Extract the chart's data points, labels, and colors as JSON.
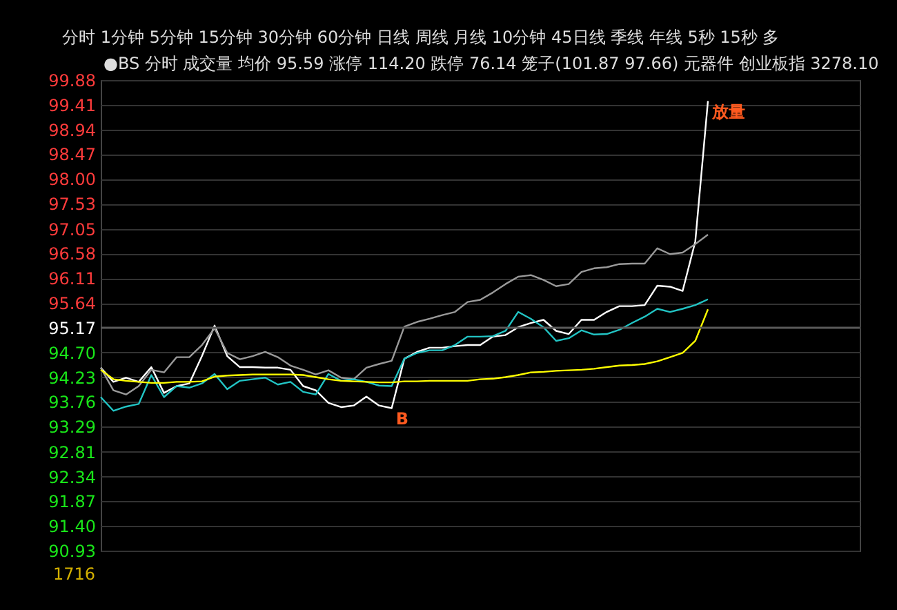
{
  "chart_data": {
    "type": "line",
    "categories": [
      null,
      null,
      null,
      null,
      null,
      null,
      null,
      null,
      null,
      null,
      null,
      null,
      null,
      null,
      null,
      null,
      null,
      null,
      null,
      null,
      null,
      null,
      null,
      null,
      null,
      null,
      null,
      null,
      null,
      null,
      null,
      null,
      null,
      null,
      null,
      null,
      null,
      null,
      null,
      null,
      null,
      null,
      null,
      null,
      null,
      null,
      null,
      null,
      null,
      null,
      null,
      null,
      null,
      null,
      null,
      null,
      null,
      null,
      null,
      null,
      null
    ],
    "ylim": [
      90.93,
      99.88
    ],
    "yticks": [
      90.93,
      {
        "value": 91.4,
        "label": "91.40"
      },
      91.87,
      92.34,
      92.81,
      93.29,
      93.76,
      94.23,
      {
        "value": 94.7,
        "label": "94.70"
      },
      95.17,
      95.64,
      96.11,
      96.58,
      97.05,
      97.53,
      {
        "value": 98,
        "label": "98.00"
      },
      98.47,
      98.94,
      99.41,
      99.88
    ],
    "tick_labels": "y",
    "grid": "y",
    "legend": false,
    "marker": "none",
    "line_style": "solid",
    "ref_lines": [
      {
        "axis": "y",
        "value": 95.17,
        "color": "#5a5a5a"
      }
    ],
    "annotations": [
      "分时 1分钟 5分钟 15分钟 30分钟 60分钟 日线 周线 月线 10分钟 45日线 季线 年线 5秒 15秒 多",
      "●BS 分时 成交量 均价 95.59 涨停 114.20 跌停 76.14 笼子(101.87 97.66) 元器件 创业板指 3278.10",
      "1716"
    ],
    "series": [
      {
        "color": "#ffffff",
        "values": [
          94.41,
          94.14,
          94.22,
          94.14,
          94.42,
          93.93,
          94.06,
          94.11,
          94.63,
          95.21,
          94.63,
          94.42,
          94.42,
          94.41,
          94.41,
          94.37,
          94.06,
          93.98,
          93.74,
          93.66,
          93.69,
          93.86,
          93.69,
          93.64,
          94.58,
          94.71,
          94.79,
          94.79,
          94.82,
          94.84,
          94.84,
          95.0,
          95.03,
          95.18,
          95.26,
          95.32,
          95.11,
          95.05,
          95.32,
          95.32,
          95.47,
          95.58,
          95.58,
          95.6,
          95.97,
          95.95,
          95.87,
          96.81,
          99.48,
          null,
          null,
          null,
          null,
          null,
          null,
          null,
          null,
          null,
          null,
          null,
          null
        ],
        "value_labels": [
          null,
          null,
          null,
          null,
          null,
          null,
          null,
          null,
          null,
          null,
          null,
          null,
          null,
          null,
          null,
          null,
          null,
          null,
          null,
          null,
          null,
          null,
          null,
          "B",
          null,
          null,
          null,
          null,
          null,
          null,
          null,
          null,
          null,
          null,
          null,
          null,
          null,
          null,
          null,
          null,
          null,
          null,
          null,
          null,
          null,
          null,
          null,
          null,
          "放量",
          null,
          null,
          null,
          null,
          null,
          null,
          null,
          null,
          null,
          null,
          null,
          null
        ]
      },
      {
        "color": "#9a9a9a",
        "values": [
          94.41,
          93.98,
          93.9,
          94.06,
          94.37,
          94.32,
          94.61,
          94.61,
          94.84,
          95.16,
          94.69,
          94.57,
          94.63,
          94.71,
          94.61,
          94.45,
          94.37,
          94.28,
          94.36,
          94.22,
          94.19,
          94.41,
          94.48,
          94.54,
          95.19,
          95.28,
          95.34,
          95.41,
          95.47,
          95.66,
          95.7,
          95.84,
          96.0,
          96.14,
          96.17,
          96.08,
          95.96,
          96.0,
          96.23,
          96.3,
          96.32,
          96.38,
          96.39,
          96.39,
          96.68,
          96.57,
          96.6,
          96.76,
          96.94,
          null,
          null,
          null,
          null,
          null,
          null,
          null,
          null,
          null,
          null,
          null,
          null
        ]
      },
      {
        "color": "#22c4c4",
        "values": [
          93.85,
          93.59,
          93.67,
          93.72,
          94.27,
          93.85,
          94.06,
          94.03,
          94.11,
          94.29,
          94.0,
          94.16,
          94.19,
          94.22,
          94.09,
          94.14,
          93.95,
          93.9,
          94.29,
          94.16,
          94.19,
          94.14,
          94.07,
          94.06,
          94.58,
          94.69,
          94.74,
          94.74,
          94.84,
          95.0,
          95.0,
          95.01,
          95.11,
          95.47,
          95.34,
          95.18,
          94.92,
          94.97,
          95.12,
          95.04,
          95.05,
          95.13,
          95.26,
          95.38,
          95.53,
          95.47,
          95.53,
          95.6,
          95.71,
          null,
          null,
          null,
          null,
          null,
          null,
          null,
          null,
          null,
          null,
          null,
          null
        ]
      },
      {
        "color": "#ffff00",
        "values": [
          94.37,
          94.19,
          94.16,
          94.14,
          94.12,
          94.12,
          94.14,
          94.14,
          94.15,
          94.24,
          94.26,
          94.27,
          94.28,
          94.28,
          94.28,
          94.28,
          94.27,
          94.23,
          94.19,
          94.16,
          94.15,
          94.14,
          94.13,
          94.13,
          94.15,
          94.15,
          94.16,
          94.16,
          94.16,
          94.16,
          94.19,
          94.2,
          94.23,
          94.27,
          94.32,
          94.33,
          94.35,
          94.36,
          94.37,
          94.39,
          94.42,
          94.45,
          94.46,
          94.48,
          94.53,
          94.61,
          94.69,
          94.92,
          95.52,
          null,
          null,
          null,
          null,
          null,
          null,
          null,
          null,
          null,
          null,
          null,
          null
        ]
      }
    ]
  }
}
